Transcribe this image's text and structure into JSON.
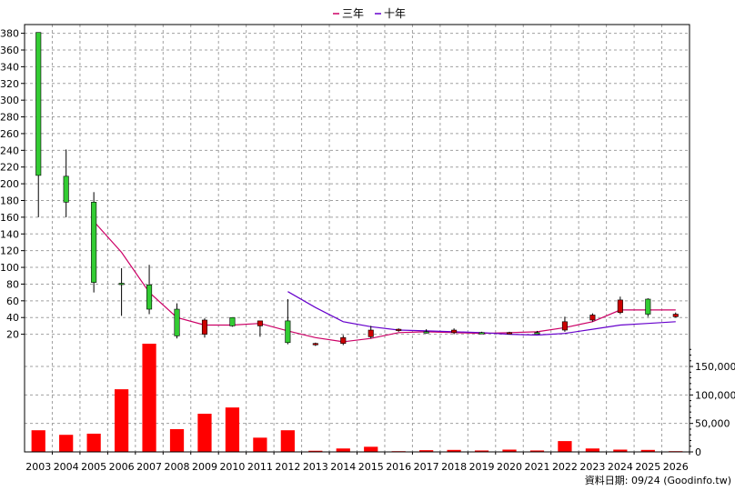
{
  "chart_data": {
    "type": "candlestick",
    "legend": {
      "placement": "top-center",
      "items": [
        {
          "label": "三年",
          "color": "#cc0066"
        },
        {
          "label": "十年",
          "color": "#6600cc"
        }
      ]
    },
    "grid": true,
    "years": [
      "2003",
      "2004",
      "2005",
      "2006",
      "2007",
      "2008",
      "2009",
      "2010",
      "2011",
      "2012",
      "2013",
      "2014",
      "2015",
      "2016",
      "2017",
      "2018",
      "2019",
      "2020",
      "2021",
      "2022",
      "2023",
      "2024",
      "2025",
      "2026"
    ],
    "price": {
      "ylim": [
        0,
        385
      ],
      "yticks": [
        20,
        40,
        60,
        80,
        100,
        120,
        140,
        160,
        180,
        200,
        220,
        240,
        260,
        280,
        300,
        320,
        340,
        360,
        380
      ],
      "candles": [
        {
          "open": 210,
          "close": 381,
          "high": 381,
          "low": 160
        },
        {
          "open": 178,
          "close": 209,
          "high": 241,
          "low": 160
        },
        {
          "open": 82,
          "close": 178,
          "high": 190,
          "low": 70
        },
        {
          "open": 81,
          "close": 81,
          "high": 99,
          "low": 42
        },
        {
          "open": 50,
          "close": 79,
          "high": 103,
          "low": 44
        },
        {
          "open": 18,
          "close": 50,
          "high": 57,
          "low": 15
        },
        {
          "open": 37,
          "close": 20,
          "high": 39,
          "low": 16
        },
        {
          "open": 30,
          "close": 40,
          "high": 40,
          "low": 29
        },
        {
          "open": 36,
          "close": 30,
          "high": 36,
          "low": 17
        },
        {
          "open": 10,
          "close": 36,
          "high": 62,
          "low": 8
        },
        {
          "open": 9,
          "close": 8,
          "high": 10,
          "low": 6
        },
        {
          "open": 16,
          "close": 9,
          "high": 19,
          "low": 7
        },
        {
          "open": 25,
          "close": 17,
          "high": 30,
          "low": 15
        },
        {
          "open": 26,
          "close": 25,
          "high": 27,
          "low": 23
        },
        {
          "open": 23,
          "close": 23,
          "high": 26,
          "low": 21
        },
        {
          "open": 25,
          "close": 22,
          "high": 27,
          "low": 20
        },
        {
          "open": 22,
          "close": 22,
          "high": 23,
          "low": 21
        },
        {
          "open": 22,
          "close": 21,
          "high": 23,
          "low": 20
        },
        {
          "open": 22,
          "close": 22,
          "high": 24,
          "low": 21
        },
        {
          "open": 35,
          "close": 25,
          "high": 41,
          "low": 23
        },
        {
          "open": 43,
          "close": 37,
          "high": 45,
          "low": 35
        },
        {
          "open": 61,
          "close": 46,
          "high": 65,
          "low": 44
        },
        {
          "open": 44,
          "close": 62,
          "high": 63,
          "low": 41
        },
        {
          "open": 44,
          "close": 41,
          "high": 46,
          "low": 40
        }
      ],
      "series": [
        {
          "name": "三年",
          "color": "#cc0066",
          "values": [
            null,
            null,
            155,
            118,
            70,
            40,
            31,
            31,
            33,
            24,
            16,
            11,
            15,
            22,
            23,
            22,
            21,
            22,
            23,
            28,
            35,
            49,
            49,
            49
          ]
        },
        {
          "name": "十年",
          "color": "#6600cc",
          "values": [
            null,
            null,
            null,
            null,
            null,
            null,
            null,
            null,
            null,
            71,
            52,
            35,
            29,
            25,
            24,
            23,
            22,
            20,
            19,
            21,
            26,
            31,
            33,
            35
          ]
        }
      ]
    },
    "volume": {
      "ylim": [
        0,
        190000
      ],
      "yticks": [
        0,
        50000,
        100000,
        150000
      ],
      "ytick_labels": [
        "0",
        "50,000",
        "100,000",
        "150,000"
      ],
      "values": [
        38000,
        30000,
        32000,
        110000,
        190000,
        40000,
        67000,
        78000,
        25000,
        38000,
        2000,
        6000,
        9000,
        500,
        3000,
        3500,
        2500,
        4000,
        2500,
        19000,
        6000,
        4000,
        3500,
        500
      ],
      "color": "#ff0000"
    }
  },
  "footer": {
    "source": "資料日期: 09/24  (Goodinfo.tw)"
  }
}
